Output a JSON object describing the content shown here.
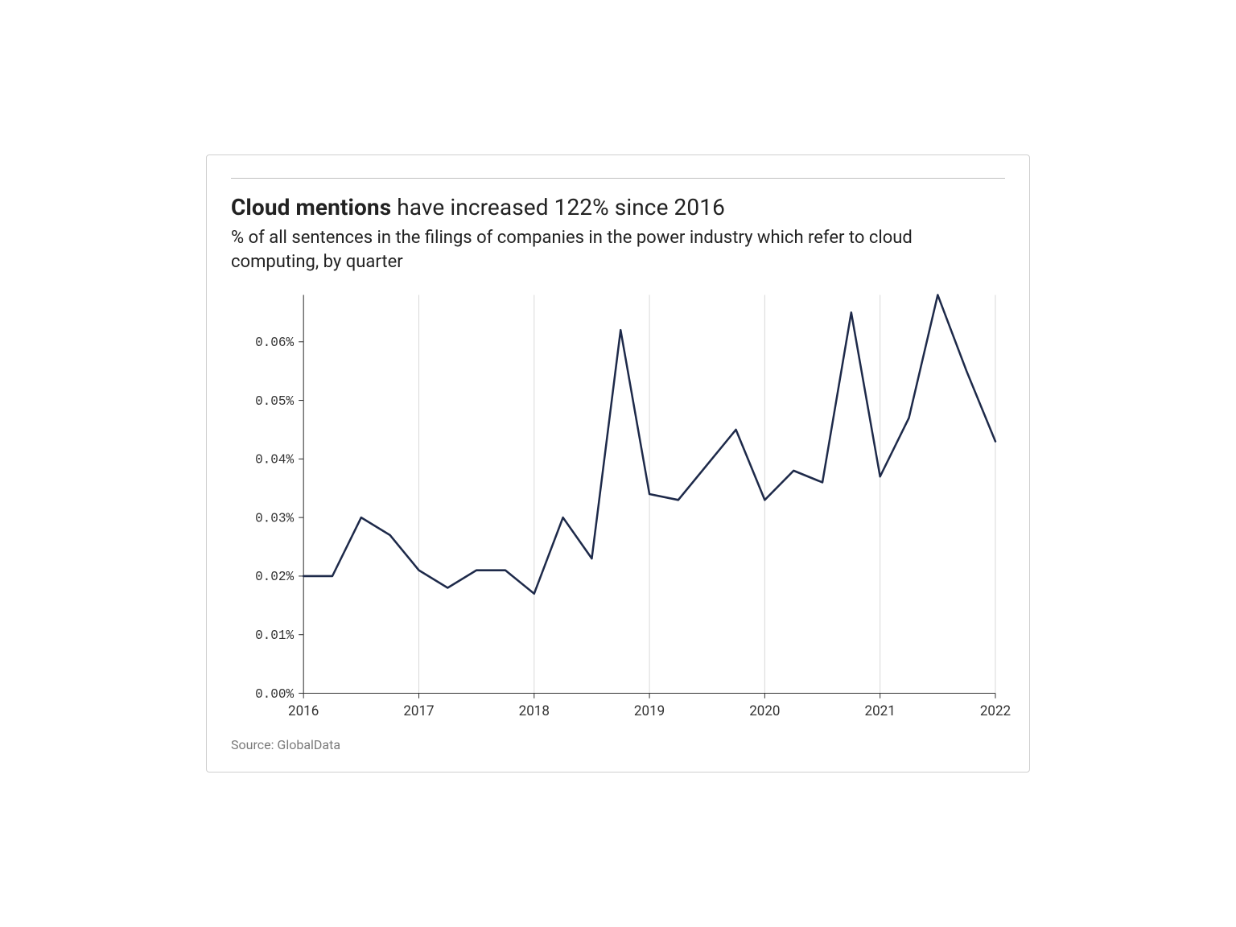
{
  "title_bold": "Cloud mentions",
  "title_rest": " have increased 122% since 2016",
  "subtitle": "% of all sentences in the filings of companies in the power industry which refer to cloud computing, by quarter",
  "source": "Source: GlobalData",
  "chart": {
    "type": "line",
    "background_color": "#ffffff",
    "line_color": "#1e2a4a",
    "line_width": 2.5,
    "grid_color": "#d9d9d9",
    "axis_color": "#333333",
    "x": {
      "min": 2016.0,
      "max": 2022.0,
      "ticks": [
        2016,
        2017,
        2018,
        2019,
        2020,
        2021,
        2022
      ],
      "tick_labels": [
        "2016",
        "2017",
        "2018",
        "2019",
        "2020",
        "2021",
        "2022"
      ]
    },
    "y": {
      "min": 0.0,
      "max": 0.068,
      "ticks": [
        0.0,
        0.01,
        0.02,
        0.03,
        0.04,
        0.05,
        0.06
      ],
      "tick_labels": [
        "0.00%",
        "0.01%",
        "0.02%",
        "0.03%",
        "0.04%",
        "0.05%",
        "0.06%"
      ]
    },
    "ytick_font": "Courier New",
    "ytick_fontsize": 16,
    "xtick_fontsize": 17,
    "series": [
      {
        "name": "cloud_mentions",
        "points": [
          [
            2016.0,
            0.02
          ],
          [
            2016.25,
            0.02
          ],
          [
            2016.5,
            0.03
          ],
          [
            2016.75,
            0.027
          ],
          [
            2017.0,
            0.021
          ],
          [
            2017.25,
            0.018
          ],
          [
            2017.5,
            0.021
          ],
          [
            2017.75,
            0.021
          ],
          [
            2018.0,
            0.017
          ],
          [
            2018.25,
            0.03
          ],
          [
            2018.5,
            0.023
          ],
          [
            2018.75,
            0.062
          ],
          [
            2019.0,
            0.034
          ],
          [
            2019.25,
            0.033
          ],
          [
            2019.5,
            0.039
          ],
          [
            2019.75,
            0.045
          ],
          [
            2020.0,
            0.033
          ],
          [
            2020.25,
            0.038
          ],
          [
            2020.5,
            0.036
          ],
          [
            2020.75,
            0.065
          ],
          [
            2021.0,
            0.037
          ],
          [
            2021.25,
            0.047
          ],
          [
            2021.5,
            0.068
          ],
          [
            2021.75,
            0.055
          ],
          [
            2022.0,
            0.043
          ]
        ]
      }
    ]
  }
}
